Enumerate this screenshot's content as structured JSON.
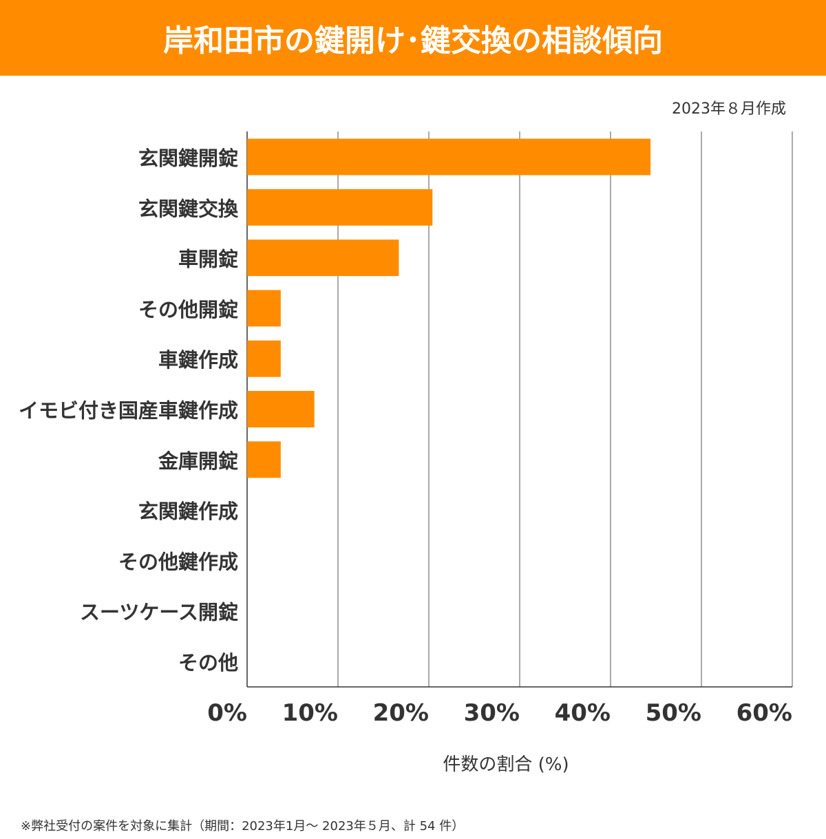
{
  "header": {
    "title": "岸和田市の鍵開け･鍵交換の相談傾向"
  },
  "date_note": "2023年８月作成",
  "footnote": "※弊社受付の案件を対象に集計（期間：2023年1月～ 2023年５月、計 54 件）",
  "colors": {
    "bar": "#ff8c00",
    "header": "#ff8c00"
  },
  "chart_data": {
    "type": "bar",
    "orientation": "horizontal",
    "categories": [
      "玄関鍵開錠",
      "玄関鍵交換",
      "車開錠",
      "その他開錠",
      "車鍵作成",
      "イモビ付き国産車鍵作成",
      "金庫開錠",
      "玄関鍵作成",
      "その他鍵作成",
      "スーツケース開錠",
      "その他"
    ],
    "values": [
      44.4,
      20.4,
      16.7,
      3.7,
      3.7,
      7.4,
      3.7,
      0,
      0,
      0,
      0
    ],
    "xlabel": "件数の割合 (%)",
    "xlim": [
      0,
      60
    ],
    "xticks": [
      "0%",
      "10%",
      "20%",
      "30%",
      "40%",
      "50%",
      "60%"
    ],
    "grid": true
  }
}
